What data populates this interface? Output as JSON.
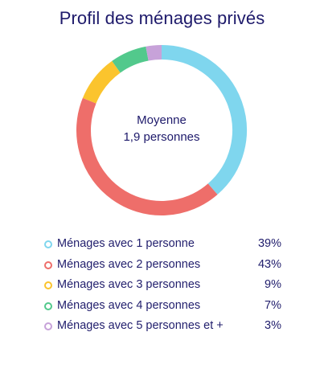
{
  "chart_data": {
    "type": "pie",
    "title": "Profil des ménages privés",
    "center_label": "Moyenne",
    "center_value": "1,9 personnes",
    "slices": [
      {
        "label": "Ménages avec 1 personne",
        "value": 39,
        "display": "39%",
        "color": "#7fd6ee"
      },
      {
        "label": "Ménages avec 2 personnes",
        "value": 43,
        "display": "43%",
        "color": "#ee6e6a"
      },
      {
        "label": "Ménages avec 3 personnes",
        "value": 9,
        "display": "9%",
        "color": "#fbc42d"
      },
      {
        "label": "Ménages avec 4 personnes",
        "value": 7,
        "display": "7%",
        "color": "#52c98c"
      },
      {
        "label": "Ménages avec 5 personnes et +",
        "value": 3,
        "display": "3%",
        "color": "#c7a2d9"
      }
    ],
    "legend_position": "bottom"
  }
}
